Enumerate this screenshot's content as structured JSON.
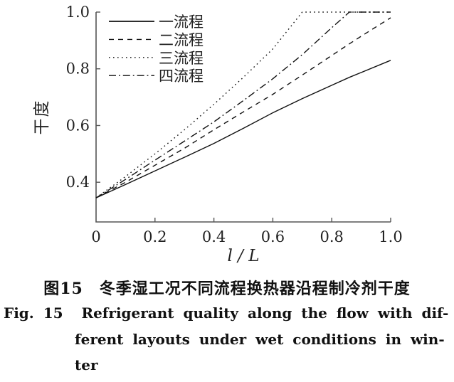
{
  "figure": {
    "caption_zh": "图15　冬季湿工况不同流程换热器沿程制冷剂干度",
    "caption_en": {
      "line1": "Fig. 15  Refrigerant quality along the flow with dif-",
      "line2": "ferent layouts under wet conditions in win-",
      "line3": "ter"
    }
  },
  "chart_data": {
    "type": "line",
    "title": "",
    "xlabel": "l / L",
    "ylabel": "干度",
    "xlim": [
      0,
      1.0
    ],
    "ylim": [
      0.26,
      1.0
    ],
    "xticks": [
      0,
      0.2,
      0.4,
      0.6,
      0.8,
      1.0
    ],
    "xtick_labels": [
      "0",
      "0.2",
      "0.4",
      "0.6",
      "0.8",
      "1.0"
    ],
    "yticks": [
      0.4,
      0.6,
      0.8,
      1.0
    ],
    "ytick_labels": [
      "0.4",
      "0.6",
      "0.8",
      "1.0"
    ],
    "grid": false,
    "legend_position": "upper-left",
    "axis_color": "#555555",
    "text_color": "#222222",
    "line_color": "#111111",
    "x": [
      0,
      0.1,
      0.2,
      0.3,
      0.4,
      0.5,
      0.6,
      0.7,
      0.8,
      0.86,
      0.9,
      1.0
    ],
    "series": [
      {
        "name": "一流程",
        "style": "solid",
        "values": [
          0.345,
          0.392,
          0.44,
          0.488,
          0.537,
          0.59,
          0.645,
          0.695,
          0.742,
          0.77,
          0.787,
          0.83
        ]
      },
      {
        "name": "二流程",
        "style": "dashed",
        "values": [
          0.345,
          0.4,
          0.46,
          0.52,
          0.585,
          0.648,
          0.71,
          0.778,
          0.847,
          0.888,
          0.915,
          0.98
        ]
      },
      {
        "name": "三流程",
        "style": "dotted",
        "values": [
          0.345,
          0.42,
          0.5,
          0.585,
          0.675,
          0.77,
          0.87,
          1.0,
          1.0,
          1.0,
          1.0,
          1.0
        ]
      },
      {
        "name": "四流程",
        "style": "dashdot",
        "values": [
          0.345,
          0.41,
          0.478,
          0.545,
          0.613,
          0.688,
          0.765,
          0.85,
          0.945,
          1.0,
          1.0,
          1.0
        ]
      }
    ]
  }
}
